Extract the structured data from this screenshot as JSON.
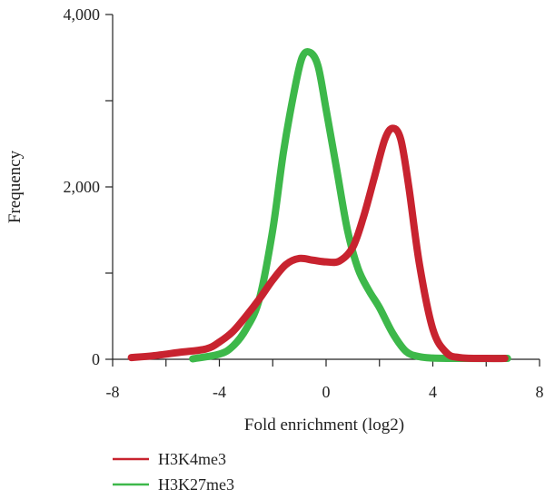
{
  "chart_data": {
    "type": "line",
    "title": "",
    "xlabel": "Fold enrichment (log2)",
    "ylabel": "Frequency",
    "xlim": [
      -8,
      8
    ],
    "ylim": [
      0,
      4000
    ],
    "x_ticks": [
      -8,
      -4,
      0,
      4,
      8
    ],
    "x_tick_labels": [
      "-8",
      "-4",
      "0",
      "4",
      "8"
    ],
    "y_ticks": [
      0,
      1000,
      2000,
      3000,
      4000
    ],
    "y_tick_labels": [
      "0",
      "",
      "2,000",
      "",
      "4,000"
    ],
    "grid": false,
    "legend_position": "bottom-left",
    "series": [
      {
        "name": "H3K4me3",
        "color": "#c8232f",
        "x": [
          -7.3,
          -6.5,
          -5.5,
          -4.5,
          -4.0,
          -3.5,
          -3.0,
          -2.5,
          -2.0,
          -1.5,
          -1.0,
          -0.5,
          0.0,
          0.5,
          1.0,
          1.4,
          1.8,
          2.2,
          2.5,
          2.8,
          3.1,
          3.5,
          4.0,
          4.5,
          5.0,
          6.0,
          6.7
        ],
        "y": [
          20,
          40,
          80,
          120,
          200,
          320,
          500,
          700,
          920,
          1100,
          1170,
          1150,
          1130,
          1140,
          1300,
          1650,
          2100,
          2550,
          2680,
          2550,
          2000,
          1100,
          350,
          80,
          20,
          10,
          10
        ]
      },
      {
        "name": "H3K27me3",
        "color": "#3db84a",
        "x": [
          -5.0,
          -4.0,
          -3.5,
          -3.0,
          -2.5,
          -2.0,
          -1.6,
          -1.2,
          -0.9,
          -0.6,
          -0.3,
          0.0,
          0.4,
          0.8,
          1.2,
          1.6,
          2.0,
          2.5,
          3.0,
          3.5,
          4.0,
          5.0,
          6.8
        ],
        "y": [
          5,
          60,
          150,
          350,
          700,
          1500,
          2400,
          3100,
          3500,
          3560,
          3400,
          2900,
          2200,
          1500,
          1050,
          800,
          600,
          300,
          90,
          30,
          15,
          10,
          10
        ]
      }
    ]
  }
}
